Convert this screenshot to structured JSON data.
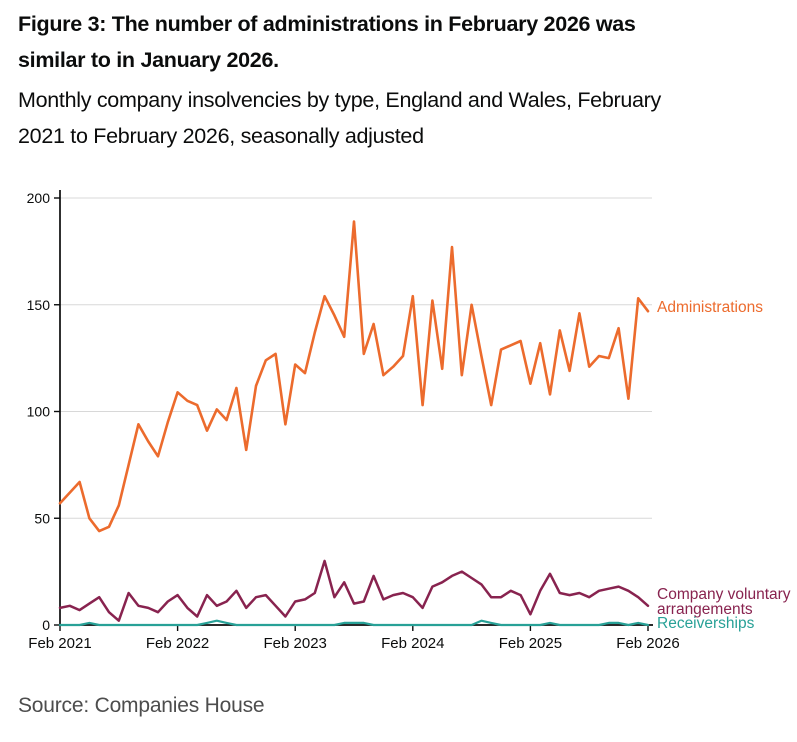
{
  "figure": {
    "title_lines": [
      "Figure 3: The number of administrations in February 2026 was",
      "similar to in January 2026."
    ],
    "subtitle_lines": [
      "Monthly company insolvencies by type, England and Wales, February",
      "2021 to February 2026, seasonally adjusted"
    ],
    "source": "Source: Companies House"
  },
  "colors": {
    "administrations": "#EC6B2D",
    "company_voluntary_arrangements": "#88234F",
    "receiverships": "#28A197",
    "axis": "#0b0c0c",
    "gridline": "#d8d8d8",
    "text": "#0b0c0c",
    "source_text": "#4d4d4d"
  },
  "chart_data": {
    "type": "line",
    "title": "Monthly company insolvencies by type, England and Wales, February 2021 to February 2026, seasonally adjusted",
    "xlabel": "",
    "ylabel": "",
    "ylim": [
      0,
      200
    ],
    "y_ticks": [
      0,
      50,
      100,
      150,
      200
    ],
    "x_tick_labels": [
      "Feb 2021",
      "Feb 2022",
      "Feb 2023",
      "Feb 2024",
      "Feb 2025",
      "Feb 2026"
    ],
    "grid": "horizontal",
    "legend_position": "labels-at-line-ends",
    "x": [
      "Feb 2021",
      "Mar 2021",
      "Apr 2021",
      "May 2021",
      "Jun 2021",
      "Jul 2021",
      "Aug 2021",
      "Sep 2021",
      "Oct 2021",
      "Nov 2021",
      "Dec 2021",
      "Jan 2022",
      "Feb 2022",
      "Mar 2022",
      "Apr 2022",
      "May 2022",
      "Jun 2022",
      "Jul 2022",
      "Aug 2022",
      "Sep 2022",
      "Oct 2022",
      "Nov 2022",
      "Dec 2022",
      "Jan 2023",
      "Feb 2023",
      "Mar 2023",
      "Apr 2023",
      "May 2023",
      "Jun 2023",
      "Jul 2023",
      "Aug 2023",
      "Sep 2023",
      "Oct 2023",
      "Nov 2023",
      "Dec 2023",
      "Jan 2024",
      "Feb 2024",
      "Mar 2024",
      "Apr 2024",
      "May 2024",
      "Jun 2024",
      "Jul 2024",
      "Aug 2024",
      "Sep 2024",
      "Oct 2024",
      "Nov 2024",
      "Dec 2024",
      "Jan 2025",
      "Feb 2025",
      "Mar 2025",
      "Apr 2025",
      "May 2025",
      "Jun 2025",
      "Jul 2025",
      "Aug 2025",
      "Sep 2025",
      "Oct 2025",
      "Nov 2025",
      "Dec 2025",
      "Jan 2026",
      "Feb 2026"
    ],
    "series": [
      {
        "name": "Administrations",
        "label_lines": [
          "Administrations"
        ],
        "color": "#EC6B2D",
        "values": [
          57,
          62,
          67,
          50,
          44,
          46,
          56,
          75,
          94,
          86,
          79,
          95,
          109,
          105,
          103,
          91,
          101,
          96,
          111,
          82,
          112,
          124,
          127,
          94,
          122,
          118,
          137,
          154,
          145,
          135,
          189,
          127,
          141,
          117,
          121,
          126,
          154,
          103,
          152,
          120,
          177,
          117,
          150,
          126,
          103,
          129,
          131,
          133,
          113,
          132,
          108,
          138,
          119,
          146,
          121,
          126,
          125,
          139,
          106,
          153,
          147
        ]
      },
      {
        "name": "Company voluntary arrangements",
        "label_lines": [
          "Company voluntary",
          "arrangements"
        ],
        "color": "#88234F",
        "values": [
          8,
          9,
          7,
          10,
          13,
          6,
          2,
          15,
          9,
          8,
          6,
          11,
          14,
          8,
          4,
          14,
          9,
          11,
          16,
          8,
          13,
          14,
          9,
          4,
          11,
          12,
          15,
          30,
          13,
          20,
          10,
          11,
          23,
          12,
          14,
          15,
          13,
          8,
          18,
          20,
          23,
          25,
          22,
          19,
          13,
          13,
          16,
          14,
          5,
          16,
          24,
          15,
          14,
          15,
          13,
          16,
          17,
          18,
          16,
          13,
          9
        ]
      },
      {
        "name": "Receiverships",
        "label_lines": [
          "Receiverships"
        ],
        "color": "#28A197",
        "values": [
          0,
          0,
          0,
          1,
          0,
          0,
          0,
          0,
          0,
          0,
          0,
          0,
          0,
          0,
          0,
          1,
          2,
          1,
          0,
          0,
          0,
          0,
          0,
          0,
          0,
          0,
          0,
          0,
          0,
          1,
          1,
          1,
          0,
          0,
          0,
          0,
          0,
          0,
          0,
          0,
          0,
          0,
          0,
          2,
          1,
          0,
          0,
          0,
          0,
          0,
          1,
          0,
          0,
          0,
          0,
          0,
          1,
          1,
          0,
          1,
          0
        ]
      }
    ]
  }
}
